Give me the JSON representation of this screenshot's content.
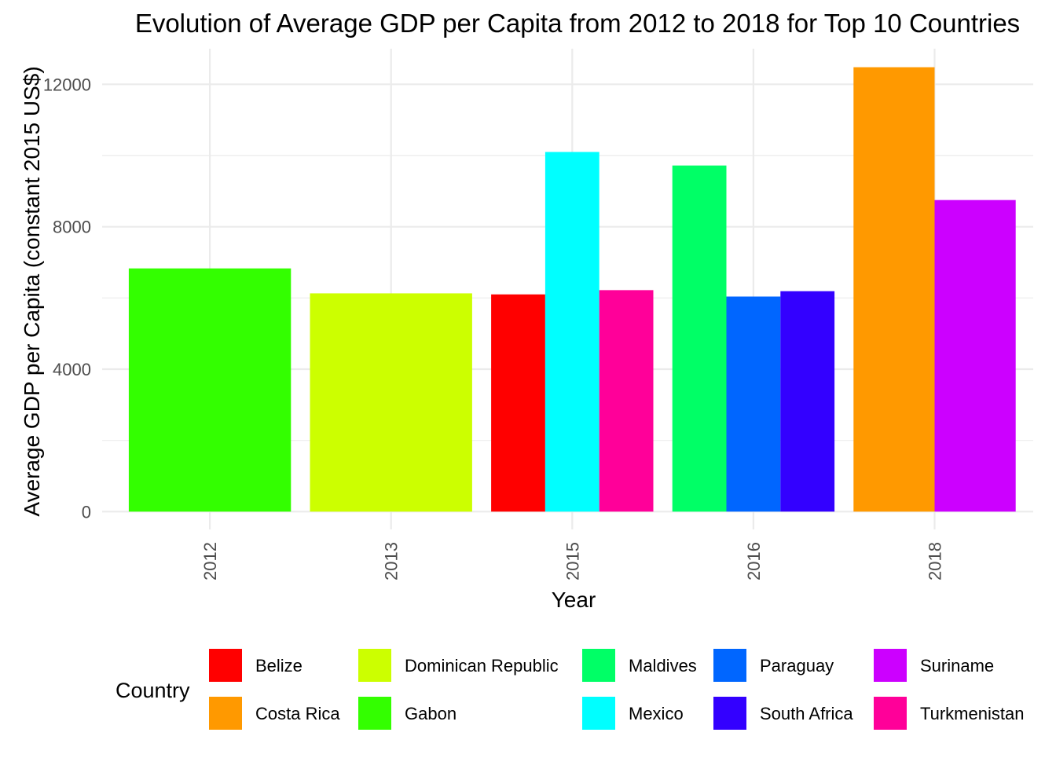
{
  "chart_data": {
    "type": "bar",
    "title": "Evolution of Average GDP per Capita from 2012 to 2018 for Top 10 Countries",
    "xlabel": "Year",
    "ylabel": "Average GDP per Capita (constant 2015 US$)",
    "categories": [
      "2012",
      "2013",
      "2015",
      "2016",
      "2018"
    ],
    "y_ticks": [
      0,
      4000,
      8000,
      12000
    ],
    "ylim": [
      -500,
      13000
    ],
    "grid": true,
    "legend_title": "Country",
    "legend_position": "bottom",
    "series": [
      {
        "name": "Belize",
        "color": "#FF0000",
        "values": {
          "2015": 6100
        }
      },
      {
        "name": "Costa Rica",
        "color": "#FF9900",
        "values": {
          "2018": 12480
        }
      },
      {
        "name": "Dominican Republic",
        "color": "#CCFF00",
        "values": {
          "2013": 6130
        }
      },
      {
        "name": "Gabon",
        "color": "#33FF00",
        "values": {
          "2012": 6830
        }
      },
      {
        "name": "Maldives",
        "color": "#00FF66",
        "values": {
          "2016": 9720
        }
      },
      {
        "name": "Mexico",
        "color": "#00FFFF",
        "values": {
          "2015": 10100
        }
      },
      {
        "name": "Paraguay",
        "color": "#0066FF",
        "values": {
          "2016": 6040
        }
      },
      {
        "name": "South Africa",
        "color": "#3300FF",
        "values": {
          "2016": 6190
        }
      },
      {
        "name": "Suriname",
        "color": "#CC00FF",
        "values": {
          "2018": 8750
        }
      },
      {
        "name": "Turkmenistan",
        "color": "#FF0099",
        "values": {
          "2015": 6220
        }
      }
    ]
  }
}
